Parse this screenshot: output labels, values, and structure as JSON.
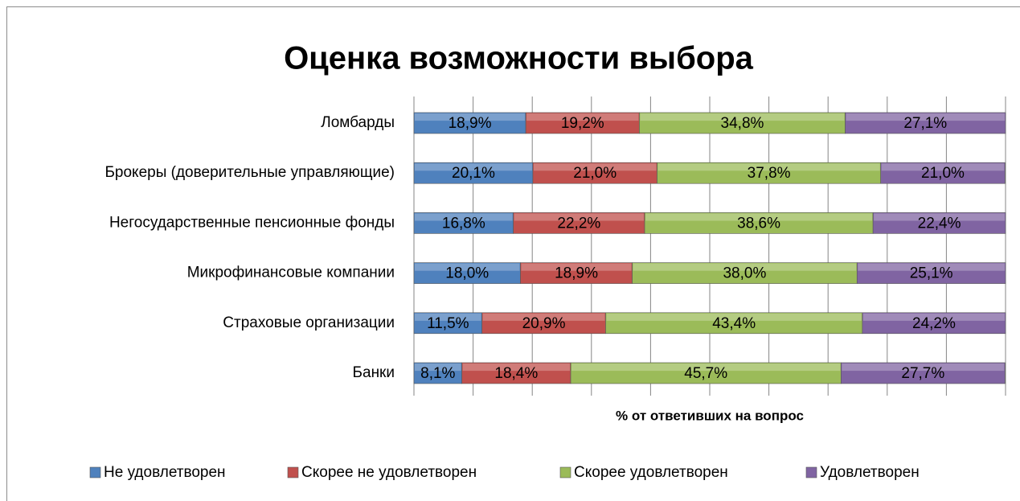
{
  "chart_data": {
    "type": "stacked_bar_horizontal",
    "title": "Оценка возможности выбора",
    "x_label": "% от ответивших на вопрос",
    "categories": [
      "Ломбарды",
      "Брокеры (доверительные управляющие)",
      "Негосударственные пенсионные фонды",
      "Микрофинансовые компании",
      "Страховые организации",
      "Банки"
    ],
    "series": [
      {
        "name": "Не удовлетворен",
        "color": "#4f81bd",
        "values": [
          18.9,
          20.1,
          16.8,
          18.0,
          11.5,
          8.1
        ],
        "value_labels": [
          "18,9%",
          "20,1%",
          "16,8%",
          "18,0%",
          "11,5%",
          "8,1%"
        ]
      },
      {
        "name": "Скорее не удовлетворен",
        "color": "#c0504d",
        "values": [
          19.2,
          21.0,
          22.2,
          18.9,
          20.9,
          18.4
        ],
        "value_labels": [
          "19,2%",
          "21,0%",
          "22,2%",
          "18,9%",
          "20,9%",
          "18,4%"
        ]
      },
      {
        "name": "Скорее удовлетворен",
        "color": "#9bbb59",
        "values": [
          34.8,
          37.8,
          38.6,
          38.0,
          43.4,
          45.7
        ],
        "value_labels": [
          "34,8%",
          "37,8%",
          "38,6%",
          "38,0%",
          "43,4%",
          "45,7%"
        ]
      },
      {
        "name": "Удовлетворен",
        "color": "#8064a2",
        "values": [
          27.1,
          21.0,
          22.4,
          25.1,
          24.2,
          27.7
        ],
        "value_labels": [
          "27,1%",
          "21,0%",
          "22,4%",
          "25,1%",
          "24,2%",
          "27,7%"
        ]
      }
    ],
    "xlim": [
      0,
      100
    ],
    "xticks": [
      0,
      10,
      20,
      30,
      40,
      50,
      60,
      70,
      80,
      90,
      100
    ],
    "grid": true,
    "legend": "bottom"
  }
}
